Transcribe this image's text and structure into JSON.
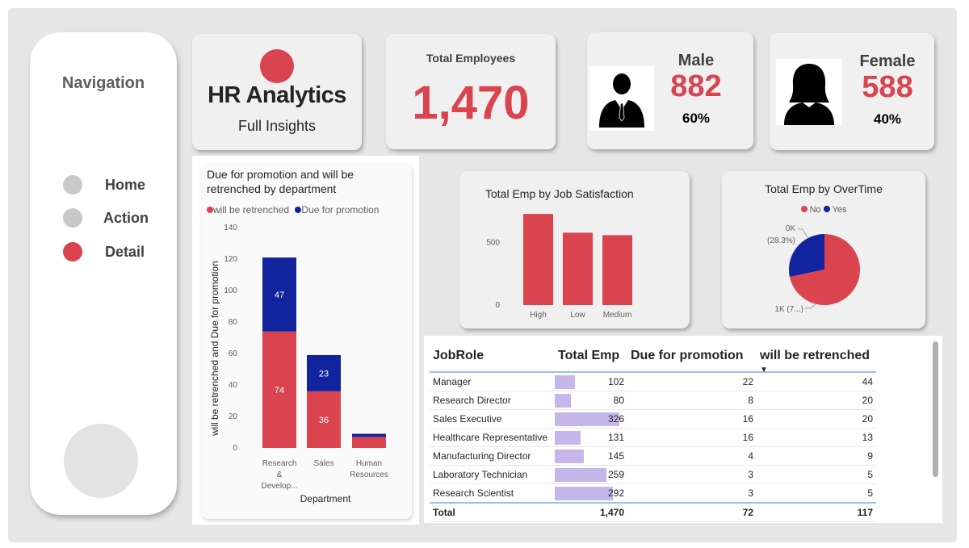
{
  "navigation": {
    "title": "Navigation",
    "items": [
      {
        "label": "Home",
        "active": false
      },
      {
        "label": "Action",
        "active": false
      },
      {
        "label": "Detail",
        "active": true
      }
    ]
  },
  "header": {
    "title": "HR Analytics",
    "subtitle": "Full Insights"
  },
  "kpis": {
    "total_label": "Total Employees",
    "total_value": "1,470",
    "male_label": "Male",
    "male_value": "882",
    "male_pct": "60%",
    "female_label": "Female",
    "female_value": "588",
    "female_pct": "40%"
  },
  "colors": {
    "red": "#d9444f",
    "blue": "#12239e",
    "bar_bg": "#c6b7ea"
  },
  "chart_data": [
    {
      "type": "bar",
      "stacked": true,
      "title": "Due for promotion and will be retrenched by department",
      "legend": [
        "will be retrenched",
        "Due for promotion"
      ],
      "categories": [
        "Research & Develop...",
        "Sales",
        "Human Resources"
      ],
      "series": [
        {
          "name": "will be retrenched",
          "values": [
            74,
            36,
            7
          ],
          "labels": [
            "74",
            "36",
            ""
          ]
        },
        {
          "name": "Due for promotion",
          "values": [
            47,
            23,
            2
          ],
          "labels": [
            "47",
            "23",
            ""
          ]
        }
      ],
      "xlabel": "Department",
      "ylabel": "will be retrenched and Due for promotion",
      "yticks": [
        "0",
        "20",
        "40",
        "60",
        "80",
        "100",
        "120",
        "140"
      ],
      "ylim": [
        0,
        140
      ],
      "legend_position": "top-left"
    },
    {
      "type": "bar",
      "title": "Total Emp by Job Satisfaction",
      "categories": [
        "High",
        "Low",
        "Medium"
      ],
      "values": [
        730,
        580,
        560
      ],
      "yticks": [
        "0",
        "500"
      ],
      "ylim": [
        0,
        750
      ]
    },
    {
      "type": "pie",
      "title": "Total Emp by OverTime",
      "legend": [
        "No",
        "Yes"
      ],
      "slices": [
        {
          "name": "No",
          "value": 71.7,
          "label": "1K (7...)"
        },
        {
          "name": "Yes",
          "value": 28.3,
          "label": "0K (28.3%)"
        }
      ],
      "legend_position": "top-center"
    }
  ],
  "table": {
    "headers": [
      "JobRole",
      "Total Emp",
      "Due for promotion",
      "will be retrenched"
    ],
    "rows": [
      {
        "role": "Manager",
        "total": "102",
        "total_num": 102,
        "promo": "22",
        "retr": "44"
      },
      {
        "role": "Research Director",
        "total": "80",
        "total_num": 80,
        "promo": "8",
        "retr": "20"
      },
      {
        "role": "Sales Executive",
        "total": "326",
        "total_num": 326,
        "promo": "16",
        "retr": "20"
      },
      {
        "role": "Healthcare Representative",
        "total": "131",
        "total_num": 131,
        "promo": "16",
        "retr": "13"
      },
      {
        "role": "Manufacturing Director",
        "total": "145",
        "total_num": 145,
        "promo": "4",
        "retr": "9"
      },
      {
        "role": "Laboratory Technician",
        "total": "259",
        "total_num": 259,
        "promo": "3",
        "retr": "5"
      },
      {
        "role": "Research Scientist",
        "total": "292",
        "total_num": 292,
        "promo": "3",
        "retr": "5"
      }
    ],
    "total": {
      "label": "Total",
      "total": "1,470",
      "promo": "72",
      "retr": "117"
    }
  }
}
